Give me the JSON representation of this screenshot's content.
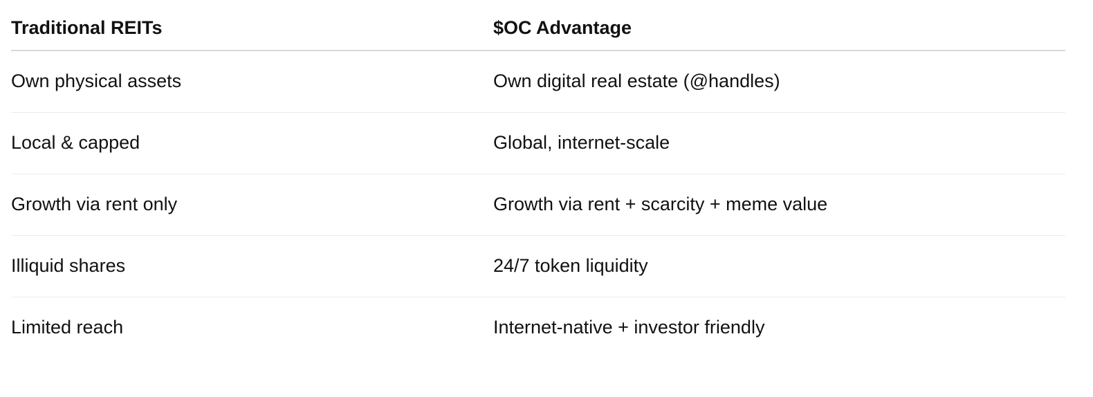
{
  "table": {
    "headers": [
      "Traditional REITs",
      "$OC Advantage"
    ],
    "rows": [
      [
        "Own physical assets",
        "Own digital real estate (@handles)"
      ],
      [
        "Local & capped",
        "Global, internet-scale"
      ],
      [
        "Growth via rent only",
        "Growth via rent + scarcity + meme value"
      ],
      [
        "Illiquid shares",
        "24/7 token liquidity"
      ],
      [
        "Limited reach",
        "Internet-native + investor friendly"
      ]
    ]
  }
}
